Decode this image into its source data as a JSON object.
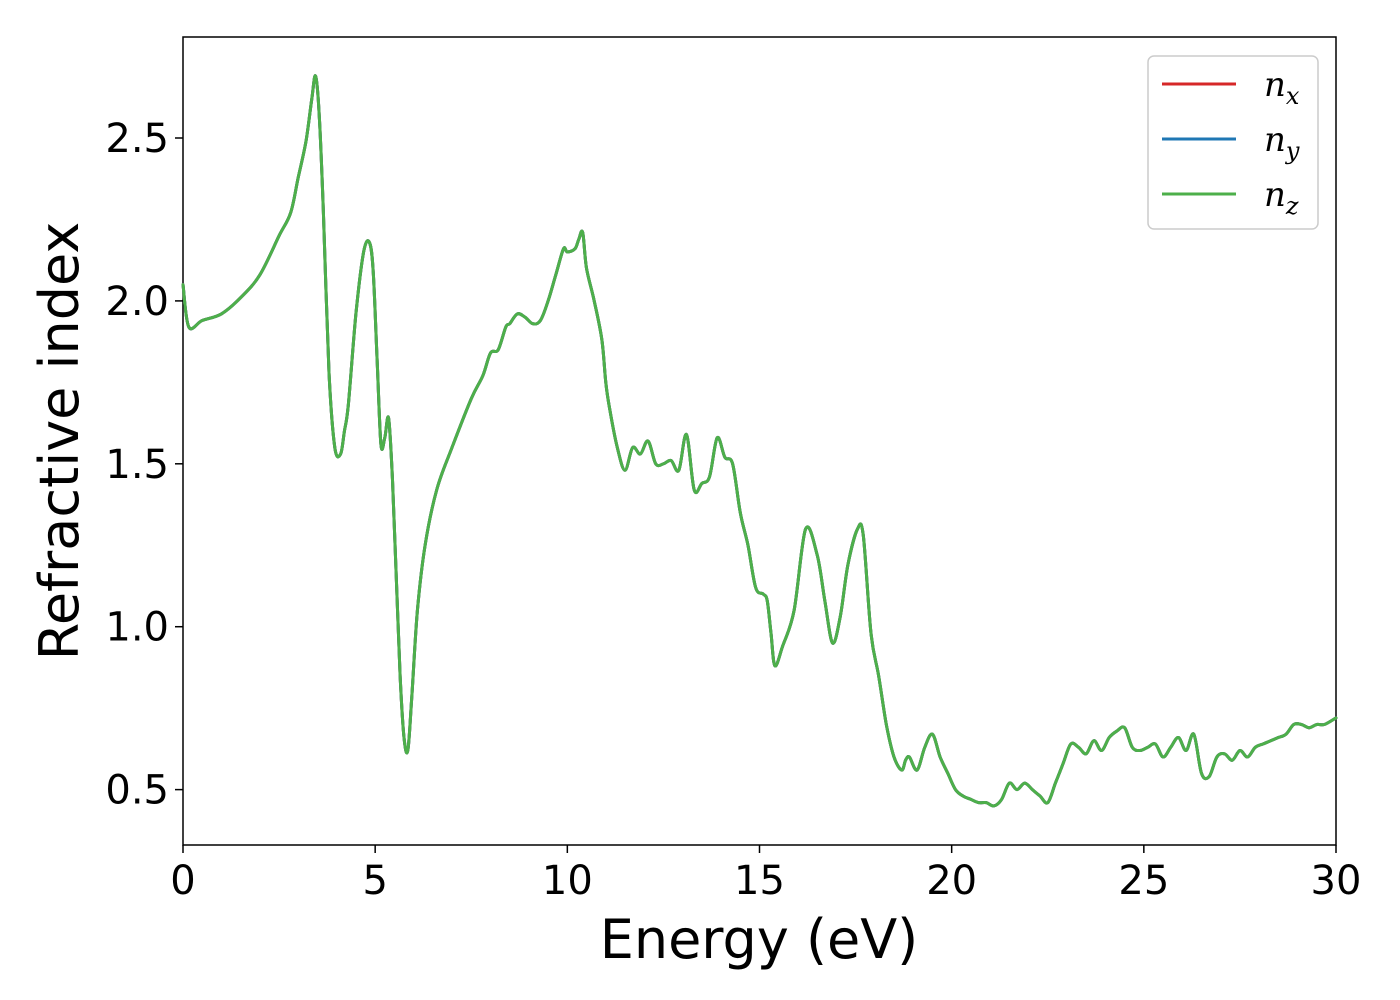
{
  "chart_data": {
    "type": "line",
    "xlabel": "Energy (eV)",
    "ylabel": "Refractive index",
    "xlim": [
      0,
      30
    ],
    "ylim": [
      0.33,
      2.81
    ],
    "xticks": [
      0,
      5,
      10,
      15,
      20,
      25,
      30
    ],
    "xtick_labels": [
      "0",
      "5",
      "10",
      "15",
      "20",
      "25",
      "30"
    ],
    "yticks": [
      0.5,
      1.0,
      1.5,
      2.0,
      2.5
    ],
    "ytick_labels": [
      "0.5",
      "1.0",
      "1.5",
      "2.0",
      "2.5"
    ],
    "grid": false,
    "legend_position": "top-right",
    "colors": {
      "n_x": "#d62728",
      "n_y": "#1f77b4",
      "n_z": "#4daf4a"
    },
    "legend": [
      {
        "base": "n",
        "sub": "x",
        "color": "#d62728"
      },
      {
        "base": "n",
        "sub": "y",
        "color": "#1f77b4"
      },
      {
        "base": "n",
        "sub": "z",
        "color": "#4daf4a"
      }
    ],
    "x": [
      0,
      0.15,
      0.5,
      1.0,
      1.5,
      2.0,
      2.5,
      2.8,
      3.0,
      3.2,
      3.35,
      3.45,
      3.55,
      3.65,
      3.8,
      3.95,
      4.1,
      4.2,
      4.3,
      4.5,
      4.7,
      4.85,
      4.95,
      5.05,
      5.15,
      5.25,
      5.35,
      5.45,
      5.55,
      5.65,
      5.75,
      5.85,
      5.95,
      6.1,
      6.3,
      6.6,
      7.0,
      7.5,
      7.8,
      8.0,
      8.2,
      8.4,
      8.5,
      8.7,
      8.9,
      9.1,
      9.3,
      9.5,
      9.7,
      9.9,
      10.0,
      10.2,
      10.3,
      10.4,
      10.5,
      10.7,
      10.9,
      11.0,
      11.1,
      11.3,
      11.5,
      11.7,
      11.9,
      12.1,
      12.3,
      12.5,
      12.7,
      12.9,
      13.1,
      13.3,
      13.5,
      13.7,
      13.9,
      14.1,
      14.3,
      14.5,
      14.7,
      14.9,
      15.1,
      15.2,
      15.3,
      15.4,
      15.6,
      15.9,
      16.2,
      16.5,
      16.7,
      16.9,
      17.1,
      17.3,
      17.55,
      17.7,
      17.9,
      18.1,
      18.3,
      18.5,
      18.7,
      18.8,
      18.9,
      19.1,
      19.3,
      19.5,
      19.7,
      19.9,
      20.1,
      20.3,
      20.5,
      20.7,
      20.9,
      21.1,
      21.3,
      21.5,
      21.7,
      21.9,
      22.1,
      22.3,
      22.5,
      22.7,
      22.9,
      23.1,
      23.3,
      23.5,
      23.7,
      23.9,
      24.1,
      24.3,
      24.5,
      24.7,
      24.9,
      25.1,
      25.3,
      25.5,
      25.7,
      25.9,
      26.1,
      26.3,
      26.5,
      26.7,
      26.9,
      27.1,
      27.3,
      27.5,
      27.7,
      27.9,
      28.1,
      28.3,
      28.5,
      28.7,
      28.9,
      29.1,
      29.3,
      29.5,
      29.7,
      30.0
    ],
    "series": [
      {
        "name": "n_x",
        "values": [
          2.05,
          1.92,
          1.94,
          1.96,
          2.01,
          2.08,
          2.2,
          2.27,
          2.38,
          2.49,
          2.62,
          2.69,
          2.56,
          2.28,
          1.78,
          1.55,
          1.53,
          1.6,
          1.68,
          1.96,
          2.15,
          2.18,
          2.09,
          1.82,
          1.56,
          1.58,
          1.64,
          1.45,
          1.15,
          0.85,
          0.66,
          0.62,
          0.78,
          1.05,
          1.25,
          1.42,
          1.55,
          1.7,
          1.77,
          1.84,
          1.85,
          1.92,
          1.93,
          1.96,
          1.95,
          1.93,
          1.94,
          2.0,
          2.08,
          2.16,
          2.15,
          2.16,
          2.19,
          2.21,
          2.1,
          2.0,
          1.88,
          1.75,
          1.67,
          1.55,
          1.48,
          1.55,
          1.53,
          1.57,
          1.5,
          1.5,
          1.51,
          1.48,
          1.59,
          1.42,
          1.44,
          1.46,
          1.58,
          1.52,
          1.5,
          1.35,
          1.25,
          1.12,
          1.1,
          1.08,
          0.98,
          0.88,
          0.94,
          1.05,
          1.3,
          1.22,
          1.08,
          0.95,
          1.03,
          1.19,
          1.3,
          1.28,
          0.98,
          0.85,
          0.7,
          0.6,
          0.56,
          0.59,
          0.6,
          0.56,
          0.63,
          0.67,
          0.6,
          0.55,
          0.5,
          0.48,
          0.47,
          0.46,
          0.46,
          0.45,
          0.47,
          0.52,
          0.5,
          0.52,
          0.5,
          0.48,
          0.46,
          0.52,
          0.58,
          0.64,
          0.63,
          0.61,
          0.65,
          0.62,
          0.66,
          0.68,
          0.69,
          0.63,
          0.62,
          0.63,
          0.64,
          0.6,
          0.63,
          0.66,
          0.62,
          0.67,
          0.55,
          0.54,
          0.6,
          0.61,
          0.59,
          0.62,
          0.6,
          0.63,
          0.64,
          0.65,
          0.66,
          0.67,
          0.7,
          0.7,
          0.69,
          0.7,
          0.7,
          0.72
        ]
      },
      {
        "name": "n_y",
        "values": "same_as_n_x"
      },
      {
        "name": "n_z",
        "values": "same_as_n_x"
      }
    ]
  }
}
